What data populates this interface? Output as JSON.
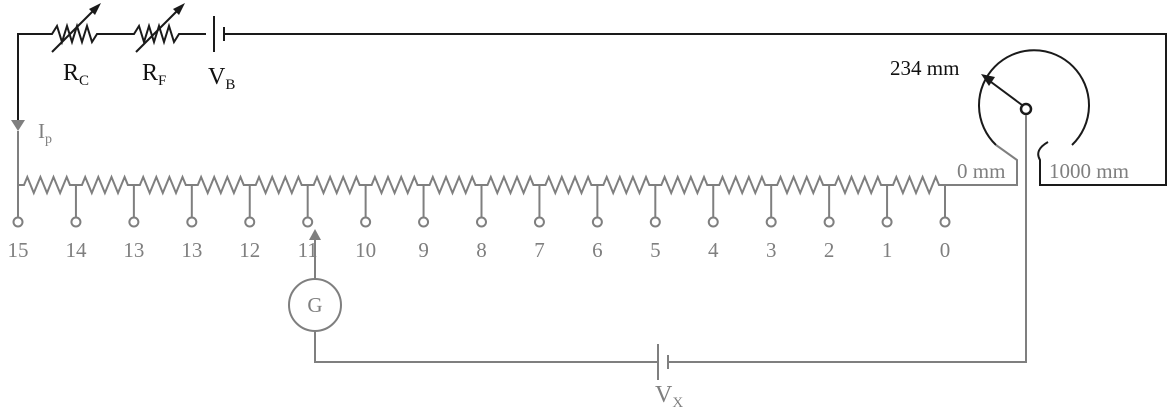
{
  "labels": {
    "rc_main": "R",
    "rc_sub": "C",
    "rf_main": "R",
    "rf_sub": "F",
    "vb_main": "V",
    "vb_sub": "B",
    "ip_main": "I",
    "ip_sub": "p",
    "dial_value": "234 mm",
    "zero_mm": "0 mm",
    "max_mm": "1000 mm",
    "galvanometer": "G",
    "vx_main": "V",
    "vx_sub": "X"
  },
  "taps": [
    "15",
    "14",
    "13",
    "13",
    "12",
    "11",
    "10",
    "9",
    "8",
    "7",
    "6",
    "5",
    "4",
    "3",
    "2",
    "1",
    "0"
  ],
  "colors": {
    "supply_circuit": "#1a1a1a",
    "measuring_circuit": "#7f7f7f",
    "background": "#ffffff"
  }
}
